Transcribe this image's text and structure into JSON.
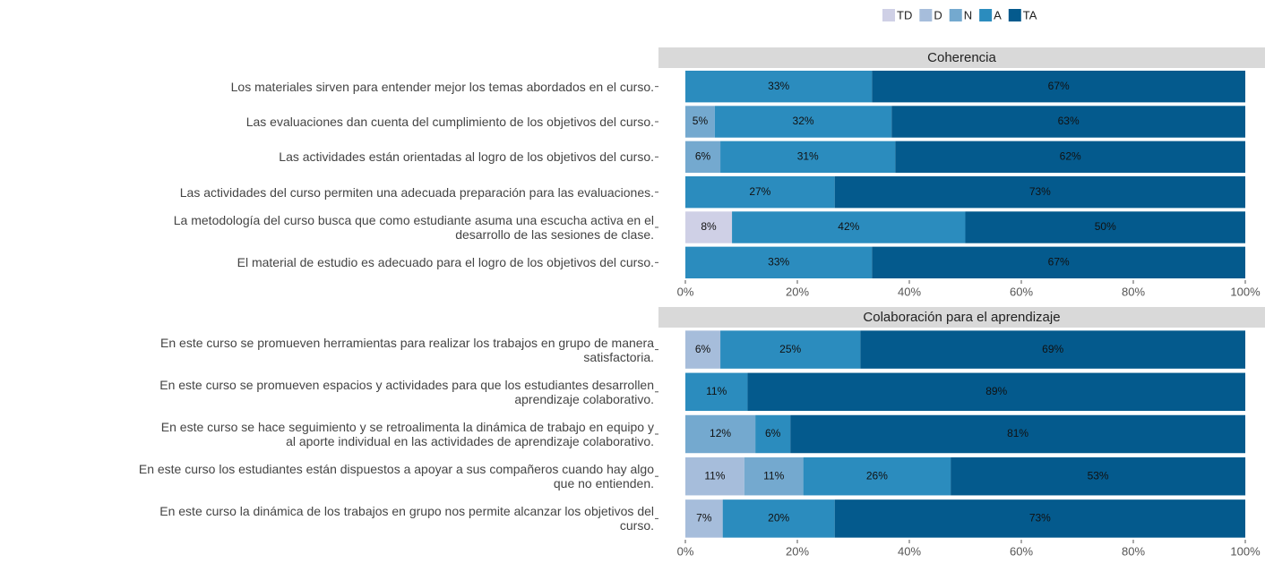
{
  "chart_data": [
    {
      "type": "bar",
      "orientation": "horizontal",
      "stacked": true,
      "title": "Coherencia",
      "categories": [
        "Los materiales sirven para entender mejor los temas abordados en el curso.",
        "Las evaluaciones dan cuenta del cumplimiento de los objetivos del curso.",
        "Las actividades están orientadas al logro de los objetivos del curso.",
        "Las actividades del curso permiten una adecuada preparación para las evaluaciones.",
        "La metodología del curso busca que como estudiante asuma una escucha activa en el\ndesarrollo de las sesiones de clase.",
        "El material de estudio es adecuado para el logro de los objetivos del curso."
      ],
      "series": [
        {
          "name": "TD",
          "color": "#cfd0e6",
          "values": [
            null,
            null,
            null,
            null,
            8.33,
            null
          ],
          "value_labels": [
            null,
            null,
            null,
            null,
            "8%",
            null
          ]
        },
        {
          "name": "D",
          "color": "#a6bddb",
          "values": [
            null,
            null,
            null,
            null,
            null,
            null
          ],
          "value_labels": [
            null,
            null,
            null,
            null,
            null,
            null
          ]
        },
        {
          "name": "N",
          "color": "#74a9cf",
          "values": [
            null,
            5.26,
            6.25,
            null,
            null,
            null
          ],
          "value_labels": [
            null,
            "5%",
            "6%",
            null,
            null,
            null
          ]
        },
        {
          "name": "A",
          "color": "#2b8cbe",
          "values": [
            33.33,
            31.58,
            31.25,
            26.67,
            41.67,
            33.33
          ],
          "value_labels": [
            "33%",
            "32%",
            "31%",
            "27%",
            "42%",
            "33%"
          ]
        },
        {
          "name": "TA",
          "color": "#045a8d",
          "values": [
            66.67,
            63.16,
            62.5,
            73.33,
            50,
            66.67
          ],
          "value_labels": [
            "67%",
            "63%",
            "62%",
            "73%",
            "50%",
            "67%"
          ]
        }
      ],
      "xlim": [
        0,
        100
      ],
      "xticks": [
        {
          "value": 0,
          "label": "0%"
        },
        {
          "value": 20,
          "label": "20%"
        },
        {
          "value": 40,
          "label": "40%"
        },
        {
          "value": 60,
          "label": "60%"
        },
        {
          "value": 80,
          "label": "80%"
        },
        {
          "value": 100,
          "label": "100%"
        }
      ]
    },
    {
      "type": "bar",
      "orientation": "horizontal",
      "stacked": true,
      "title": "Colaboración para el aprendizaje",
      "categories": [
        "En este curso se promueven herramientas para realizar los trabajos en grupo de manera\nsatisfactoria.",
        "En este curso se promueven espacios y actividades para que los estudiantes desarrollen\naprendizaje colaborativo.",
        "En este curso se hace seguimiento y se retroalimenta la dinámica de trabajo en equipo y\nal aporte individual en las actividades de aprendizaje colaborativo.",
        "En este curso los estudiantes están dispuestos a apoyar a sus compañeros cuando hay algo\nque no entienden.",
        "En este curso la dinámica de los trabajos en grupo nos permite alcanzar los objetivos del\ncurso."
      ],
      "series": [
        {
          "name": "TD",
          "color": "#cfd0e6",
          "values": [
            null,
            null,
            null,
            null,
            null
          ],
          "value_labels": [
            null,
            null,
            null,
            null,
            null
          ]
        },
        {
          "name": "D",
          "color": "#a6bddb",
          "values": [
            6.25,
            null,
            null,
            10.53,
            6.67
          ],
          "value_labels": [
            "6%",
            null,
            null,
            "11%",
            "7%"
          ]
        },
        {
          "name": "N",
          "color": "#74a9cf",
          "values": [
            null,
            null,
            12.5,
            10.53,
            null
          ],
          "value_labels": [
            null,
            null,
            "12%",
            "11%",
            null
          ]
        },
        {
          "name": "A",
          "color": "#2b8cbe",
          "values": [
            25,
            11.11,
            6.25,
            26.32,
            20
          ],
          "value_labels": [
            "25%",
            "11%",
            "6%",
            "26%",
            "20%"
          ]
        },
        {
          "name": "TA",
          "color": "#045a8d",
          "values": [
            68.75,
            88.89,
            81.25,
            52.63,
            73.33
          ],
          "value_labels": [
            "69%",
            "89%",
            "81%",
            "53%",
            "73%"
          ]
        }
      ],
      "xlim": [
        0,
        100
      ],
      "xticks": [
        {
          "value": 0,
          "label": "0%"
        },
        {
          "value": 20,
          "label": "20%"
        },
        {
          "value": 40,
          "label": "40%"
        },
        {
          "value": 60,
          "label": "60%"
        },
        {
          "value": 80,
          "label": "80%"
        },
        {
          "value": 100,
          "label": "100%"
        }
      ]
    }
  ]
}
